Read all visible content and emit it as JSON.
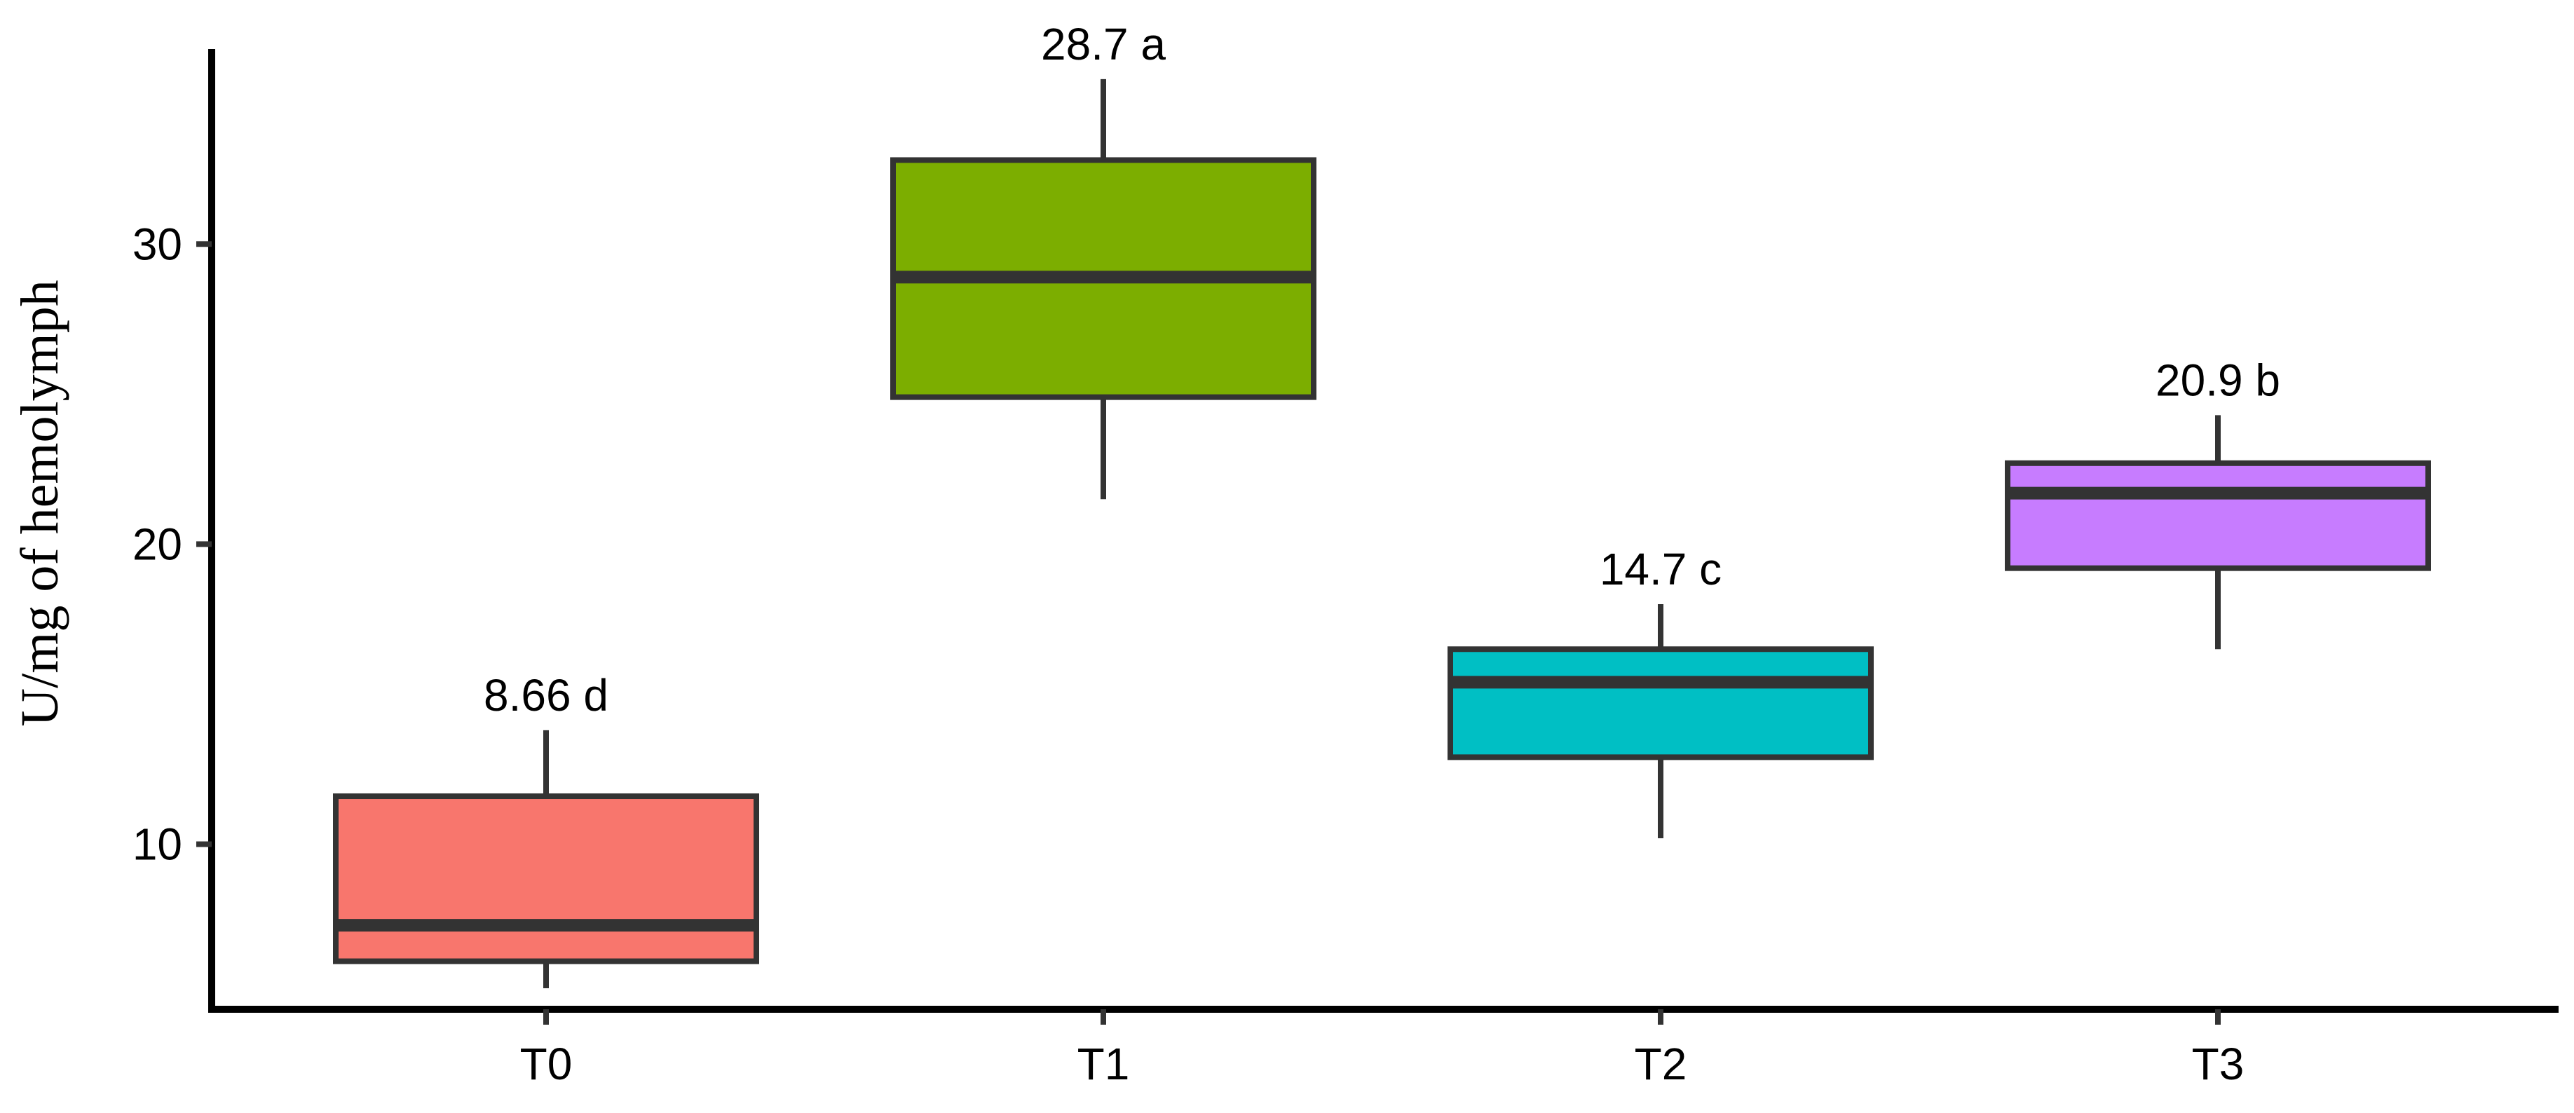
{
  "chart_data": {
    "type": "boxplot",
    "title": "",
    "xlabel": "",
    "ylabel": "U/mg of hemolymph",
    "ylim": [
      4.5,
      36.5
    ],
    "yticks": [
      10,
      20,
      30
    ],
    "grid": false,
    "legend": "none",
    "categories": [
      "T0",
      "T1",
      "T2",
      "T3"
    ],
    "boxes": [
      {
        "category": "T0",
        "whisker_low": 5.2,
        "q1": 6.1,
        "median": 7.3,
        "q3": 11.6,
        "whisker_high": 13.8,
        "label": "8.66 d",
        "color": "#F8766D"
      },
      {
        "category": "T1",
        "whisker_low": 21.5,
        "q1": 24.9,
        "median": 28.9,
        "q3": 32.8,
        "whisker_high": 35.5,
        "label": "28.7 a",
        "color": "#7CAE00"
      },
      {
        "category": "T2",
        "whisker_low": 10.2,
        "q1": 12.9,
        "median": 15.4,
        "q3": 16.5,
        "whisker_high": 18.0,
        "label": "14.7 c",
        "color": "#00BFC4"
      },
      {
        "category": "T3",
        "whisker_low": 16.5,
        "q1": 19.2,
        "median": 21.7,
        "q3": 22.7,
        "whisker_high": 24.3,
        "label": "20.9 b",
        "color": "#C77CFF"
      }
    ]
  }
}
